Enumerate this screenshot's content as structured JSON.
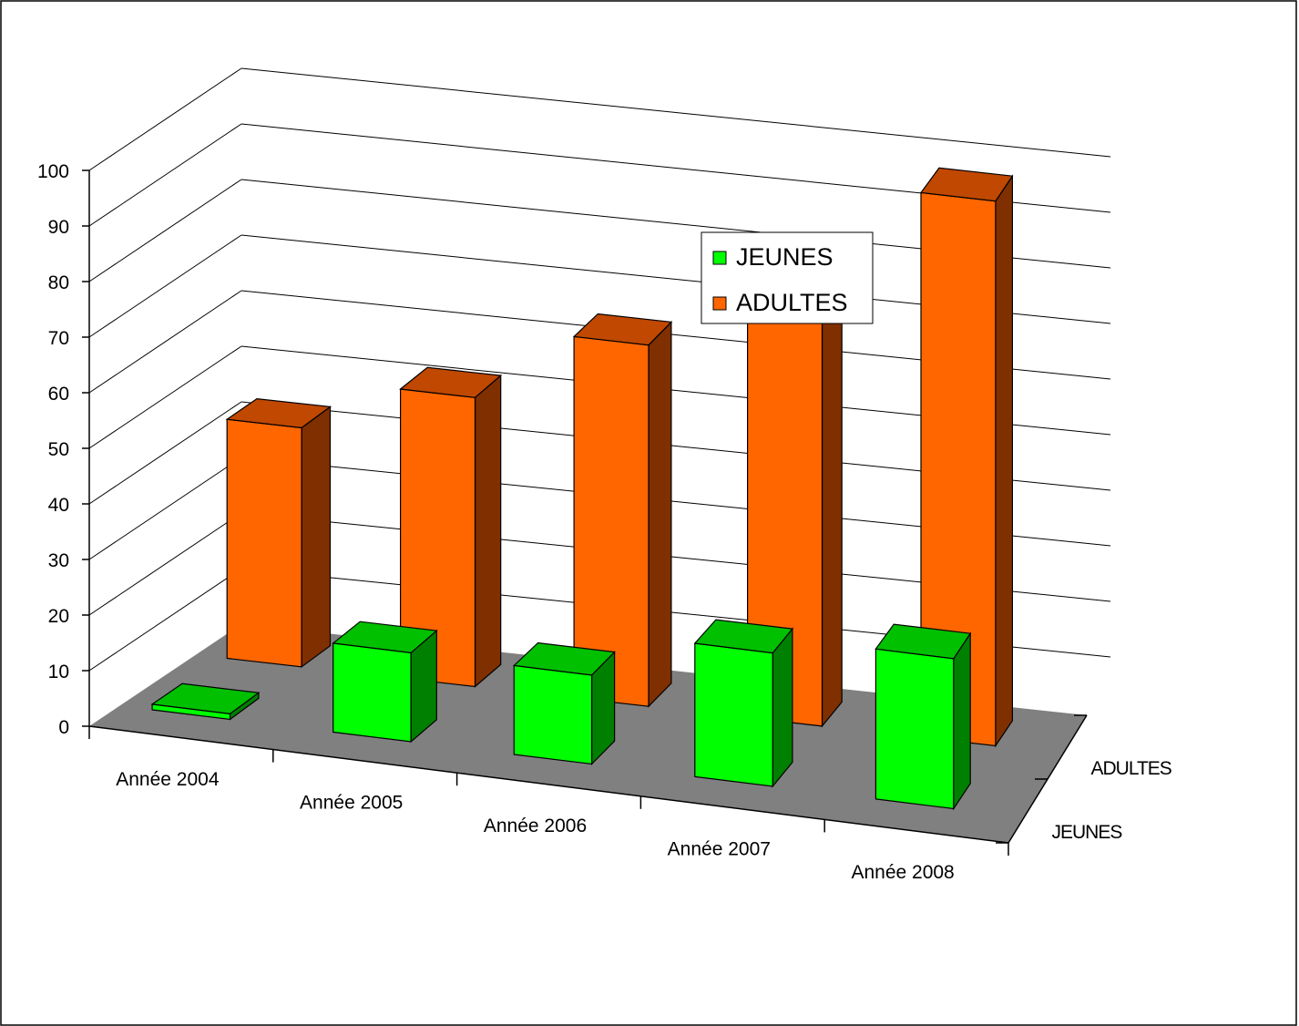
{
  "chart_data": {
    "type": "bar",
    "categories": [
      "Année 2004",
      "Année 2005",
      "Année 2006",
      "Année 2007",
      "Année 2008"
    ],
    "depth_labels": [
      "JEUNES",
      "ADULTES"
    ],
    "series": [
      {
        "name": "JEUNES",
        "values": [
          1,
          16,
          16,
          24,
          27
        ],
        "color": "#00FF00"
      },
      {
        "name": "ADULTES",
        "values": [
          43,
          52,
          65,
          77,
          98
        ],
        "color": "#FF6600"
      }
    ],
    "y_ticks": [
      "0",
      "10",
      "20",
      "30",
      "40",
      "50",
      "60",
      "70",
      "80",
      "90",
      "100"
    ],
    "ylim": [
      0,
      100
    ],
    "title": "",
    "xlabel": "",
    "ylabel": "",
    "grid": true,
    "legend": {
      "position": "top-right",
      "entries": [
        {
          "label": "JEUNES",
          "color": "#00FF00"
        },
        {
          "label": "ADULTES",
          "color": "#FF6600"
        }
      ]
    },
    "colors": {
      "floor": "#808080",
      "jeunes_side": "#008000",
      "jeunes_top": "#00C000",
      "adultes_side": "#7F2F00",
      "adultes_top": "#C04800"
    }
  }
}
